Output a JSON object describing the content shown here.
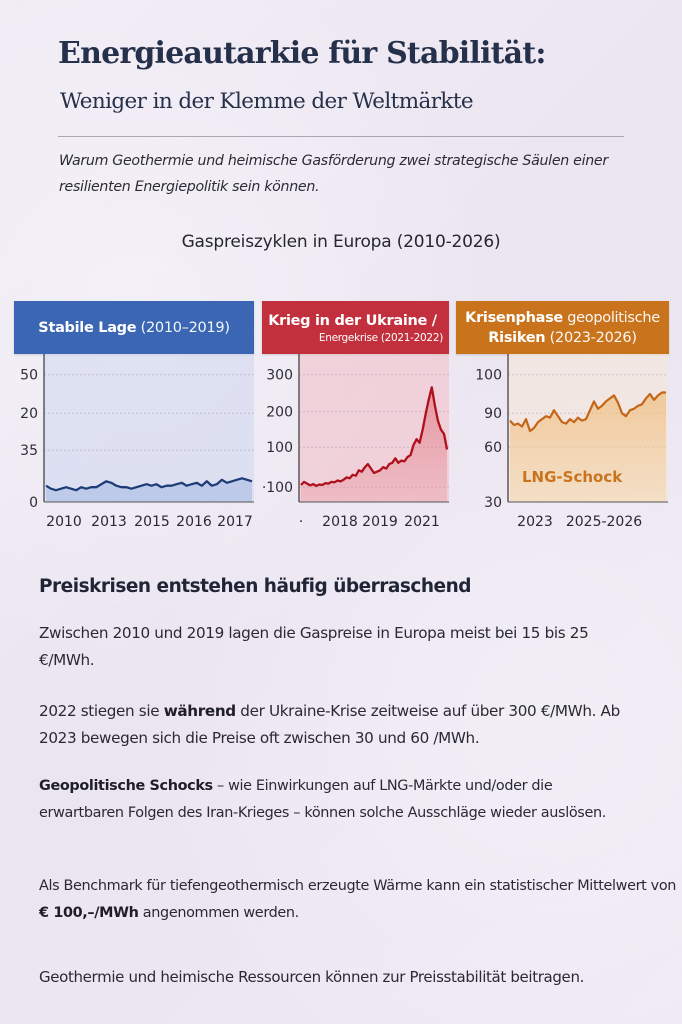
{
  "header": {
    "title": "Energieautarkie für Stabilität:",
    "subtitle": "Weniger in der Klemme der Weltmärkte",
    "lede": "Warum Geothermie und heimische Gasförderung zwei strategische Säulen einer resilienten Energiepolitik sein können."
  },
  "colors": {
    "blue": "#3a66b3",
    "red": "#c2303d",
    "orange": "#c9731d",
    "title": "#25304a"
  },
  "chart_data": [
    {
      "type": "line",
      "title": "Stabile Lage (2010–2019)",
      "title_bold": "Stabile Lage",
      "title_rest": "(2010–2019)",
      "overall_title": "Gaspreiszyklen in Europa (2010-2026)",
      "y_tick_labels": [
        "50",
        "20",
        "35",
        "0"
      ],
      "x_tick_labels": [
        "2010",
        "2013",
        "2015",
        "2016",
        "2017"
      ],
      "grid": true,
      "y_range_fraction": [
        0,
        1
      ],
      "series": [
        {
          "name": "Gaspreis",
          "color": "#1f3f7a",
          "values_fraction_of_axis": [
            0.11,
            0.09,
            0.08,
            0.09,
            0.1,
            0.09,
            0.08,
            0.1,
            0.09,
            0.1,
            0.1,
            0.12,
            0.14,
            0.13,
            0.11,
            0.1,
            0.1,
            0.09,
            0.1,
            0.11,
            0.12,
            0.11,
            0.12,
            0.1,
            0.11,
            0.11,
            0.12,
            0.13,
            0.11,
            0.12,
            0.13,
            0.11,
            0.14,
            0.11,
            0.12,
            0.15,
            0.13,
            0.14,
            0.15,
            0.16,
            0.15,
            0.14
          ]
        }
      ]
    },
    {
      "type": "area",
      "title": "Krieg in der Ukraine / Energekrise (2021-2022)",
      "title_line1": "Krieg in der Ukraine /",
      "title_line2": "Energekrise (2021-2022)",
      "y_tick_labels": [
        "300",
        "200",
        "100",
        "·100"
      ],
      "y_ticks": [
        300,
        200,
        100,
        0
      ],
      "x_tick_labels": [
        "·",
        "2018",
        "2019",
        "2021"
      ],
      "ylim": [
        0,
        300
      ],
      "grid": true,
      "series": [
        {
          "name": "Gaspreis",
          "color": "#b3121e",
          "values": [
            5,
            12,
            8,
            4,
            7,
            3,
            6,
            5,
            9,
            8,
            12,
            11,
            15,
            13,
            17,
            22,
            20,
            28,
            26,
            38,
            35,
            45,
            52,
            42,
            32,
            35,
            38,
            45,
            42,
            52,
            55,
            65,
            55,
            60,
            58,
            68,
            72,
            95,
            108,
            100,
            130,
            165,
            198,
            225,
            185,
            150,
            130,
            120,
            85
          ]
        }
      ]
    },
    {
      "type": "area",
      "title": "Krisenphase geopolitische Risiken (2023-2026)",
      "title_line1_bold": "Krisenphase",
      "title_line1_rest": "geopolitische",
      "title_line2_bold": "Risiken",
      "title_line2_rest": "(2023-2026)",
      "annotation": "LNG-Schock",
      "y_tick_labels": [
        "100",
        "90",
        "60",
        "30"
      ],
      "x_tick_labels": [
        "2023",
        "2025-2026"
      ],
      "grid": true,
      "series": [
        {
          "name": "Gaspreis",
          "color": "#c4661a",
          "values_fraction_of_axis": [
            0.55,
            0.52,
            0.53,
            0.51,
            0.56,
            0.48,
            0.5,
            0.54,
            0.56,
            0.58,
            0.57,
            0.62,
            0.58,
            0.54,
            0.53,
            0.56,
            0.54,
            0.57,
            0.55,
            0.56,
            0.62,
            0.68,
            0.63,
            0.65,
            0.68,
            0.7,
            0.72,
            0.67,
            0.6,
            0.58,
            0.62,
            0.63,
            0.65,
            0.66,
            0.7,
            0.73,
            0.69,
            0.72,
            0.74,
            0.74
          ]
        }
      ]
    }
  ],
  "body": {
    "heading": "Preiskrisen entstehen häufig überraschend",
    "p1": "Zwischen 2010 und 2019 lagen die Gaspreise in Europa meist bei 15 bis 25 €/MWh.",
    "p2_a": "2022 stiegen sie ",
    "p2_bold": "während",
    "p2_b": " der Ukraine-Krise zeitweise auf über 300 €/MWh. Ab 2023 bewegen sich die Preise oft zwischen 30 und 60 /MWh.",
    "p3_bold": "Geopolitische Schocks",
    "p3_rest": " – wie Einwirkungen auf LNG-Märkte und/oder die erwartbaren Folgen des Iran-Krieges – können solche Ausschläge wieder auslösen.",
    "p4_a": "Als Benchmark für tiefengeothermisch erzeugte Wärme kann ein statistischer Mittelwert von ",
    "p4_bold": "€ 100,–/MWh",
    "p4_b": " angenommen werden.",
    "p5": "Geothermie und heimische Ressourcen können zur Preisstabilität beitragen."
  }
}
